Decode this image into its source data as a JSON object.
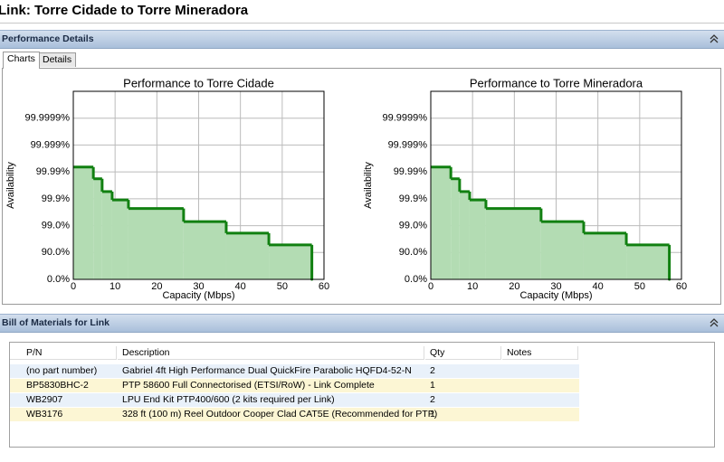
{
  "header": {
    "title": "Link: Torre Cidade to Torre Mineradora"
  },
  "performance_panel": {
    "title": "Performance Details",
    "tabs": [
      "Charts",
      "Details"
    ],
    "charts": [
      {
        "type": "step",
        "title": "Performance to Torre Cidade",
        "x_label": "Capacity (Mbps)",
        "y_label": "Availability",
        "x": [
          0,
          4.8,
          6.9,
          9.3,
          13.2,
          26.4,
          36.6,
          46.8,
          57.1
        ],
        "values": [
          99.9934,
          99.982,
          99.946,
          99.89,
          99.77,
          99.29,
          98.1,
          94.8,
          0
        ],
        "xlim": [
          0,
          60
        ],
        "xticks": [
          0,
          10,
          20,
          30,
          40,
          50,
          60
        ],
        "ylim": [
          0,
          99.99999
        ],
        "yscale": "nines",
        "yticks": [
          {
            "value": 0,
            "label": "0.0%"
          },
          {
            "value": 90,
            "label": "90.0%"
          },
          {
            "value": 99,
            "label": "99.0%"
          },
          {
            "value": 99.9,
            "label": "99.9%"
          },
          {
            "value": 99.99,
            "label": "99.99%"
          },
          {
            "value": 99.999,
            "label": "99.999%"
          },
          {
            "value": 99.9999,
            "label": "99.9999%"
          }
        ],
        "color": "#118011",
        "fill_color": "#b3dcb3",
        "grid": true
      },
      {
        "type": "step",
        "title": "Performance to Torre Mineradora",
        "x_label": "Capacity (Mbps)",
        "y_label": "Availability",
        "x": [
          0,
          4.8,
          6.9,
          9.3,
          13.2,
          26.4,
          36.6,
          46.8,
          57.1
        ],
        "values": [
          99.9934,
          99.982,
          99.946,
          99.89,
          99.77,
          99.29,
          98.1,
          94.8,
          0
        ],
        "xlim": [
          0,
          60
        ],
        "xticks": [
          0,
          10,
          20,
          30,
          40,
          50,
          60
        ],
        "ylim": [
          0,
          99.99999
        ],
        "yscale": "nines",
        "yticks": [
          {
            "value": 0,
            "label": "0.0%"
          },
          {
            "value": 90,
            "label": "90.0%"
          },
          {
            "value": 99,
            "label": "99.0%"
          },
          {
            "value": 99.9,
            "label": "99.9%"
          },
          {
            "value": 99.99,
            "label": "99.99%"
          },
          {
            "value": 99.999,
            "label": "99.999%"
          },
          {
            "value": 99.9999,
            "label": "99.9999%"
          }
        ],
        "color": "#118011",
        "fill_color": "#b3dcb3",
        "grid": true
      }
    ]
  },
  "bom_panel": {
    "title": "Bill of Materials for Link",
    "table": {
      "columns": [
        "P/N",
        "Description",
        "Qty",
        "Notes"
      ],
      "rows": [
        [
          "(no part number)",
          "Gabriel 4ft High Performance Dual QuickFire Parabolic HQFD4-52-N",
          2
        ],
        [
          "BP5830BHC-2",
          "PTP 58600 Full Connectorised (ETSI/RoW) - Link Complete",
          1
        ],
        [
          "WB2907",
          "LPU End Kit PTP400/600 (2 kits required per Link)",
          2
        ],
        [
          "WB3176",
          "328 ft (100 m) Reel Outdoor Cooper Clad CAT5E (Recommended for PTP)",
          1
        ]
      ]
    }
  }
}
